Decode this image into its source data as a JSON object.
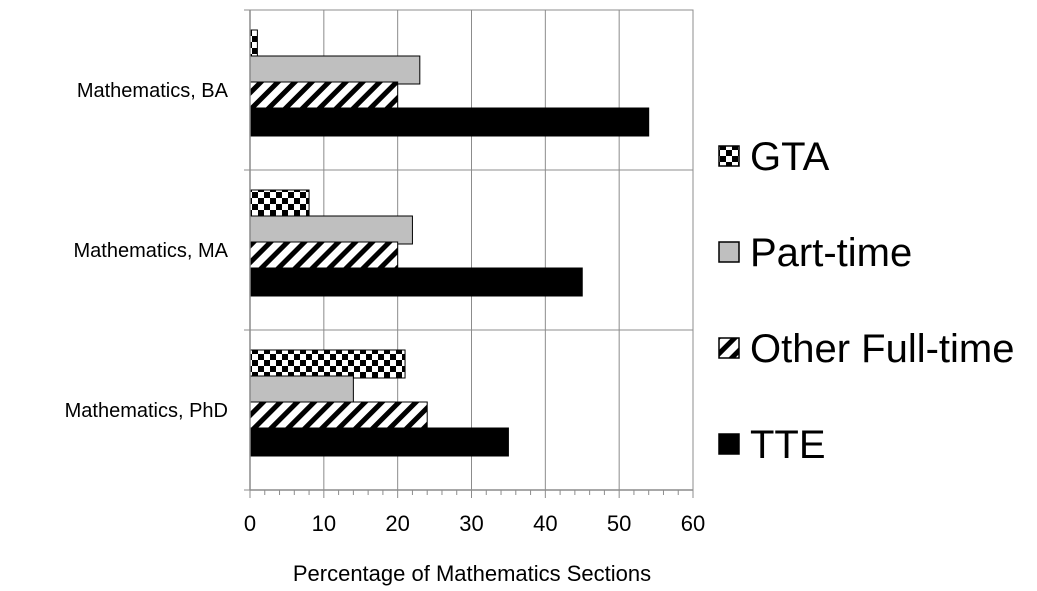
{
  "chart_data": {
    "type": "bar",
    "orientation": "horizontal",
    "categories": [
      "Mathematics, BA",
      "Mathematics, MA",
      "Mathematics, PhD"
    ],
    "series": [
      {
        "name": "GTA",
        "values": [
          1,
          8,
          21
        ],
        "pattern": "checker"
      },
      {
        "name": "Part-time",
        "values": [
          23,
          22,
          14
        ],
        "pattern": "gray",
        "color": "#bfbfbf"
      },
      {
        "name": "Other Full-time",
        "values": [
          20,
          20,
          24
        ],
        "pattern": "diagonal"
      },
      {
        "name": "TTE",
        "values": [
          54,
          45,
          35
        ],
        "pattern": "solid",
        "color": "#000000"
      }
    ],
    "xlabel": "Percentage of Mathematics Sections",
    "ylabel": "",
    "xlim": [
      0,
      60
    ],
    "xticks": [
      "0",
      "10",
      "20",
      "30",
      "40",
      "50",
      "60"
    ],
    "grid": true,
    "legend": "right"
  }
}
